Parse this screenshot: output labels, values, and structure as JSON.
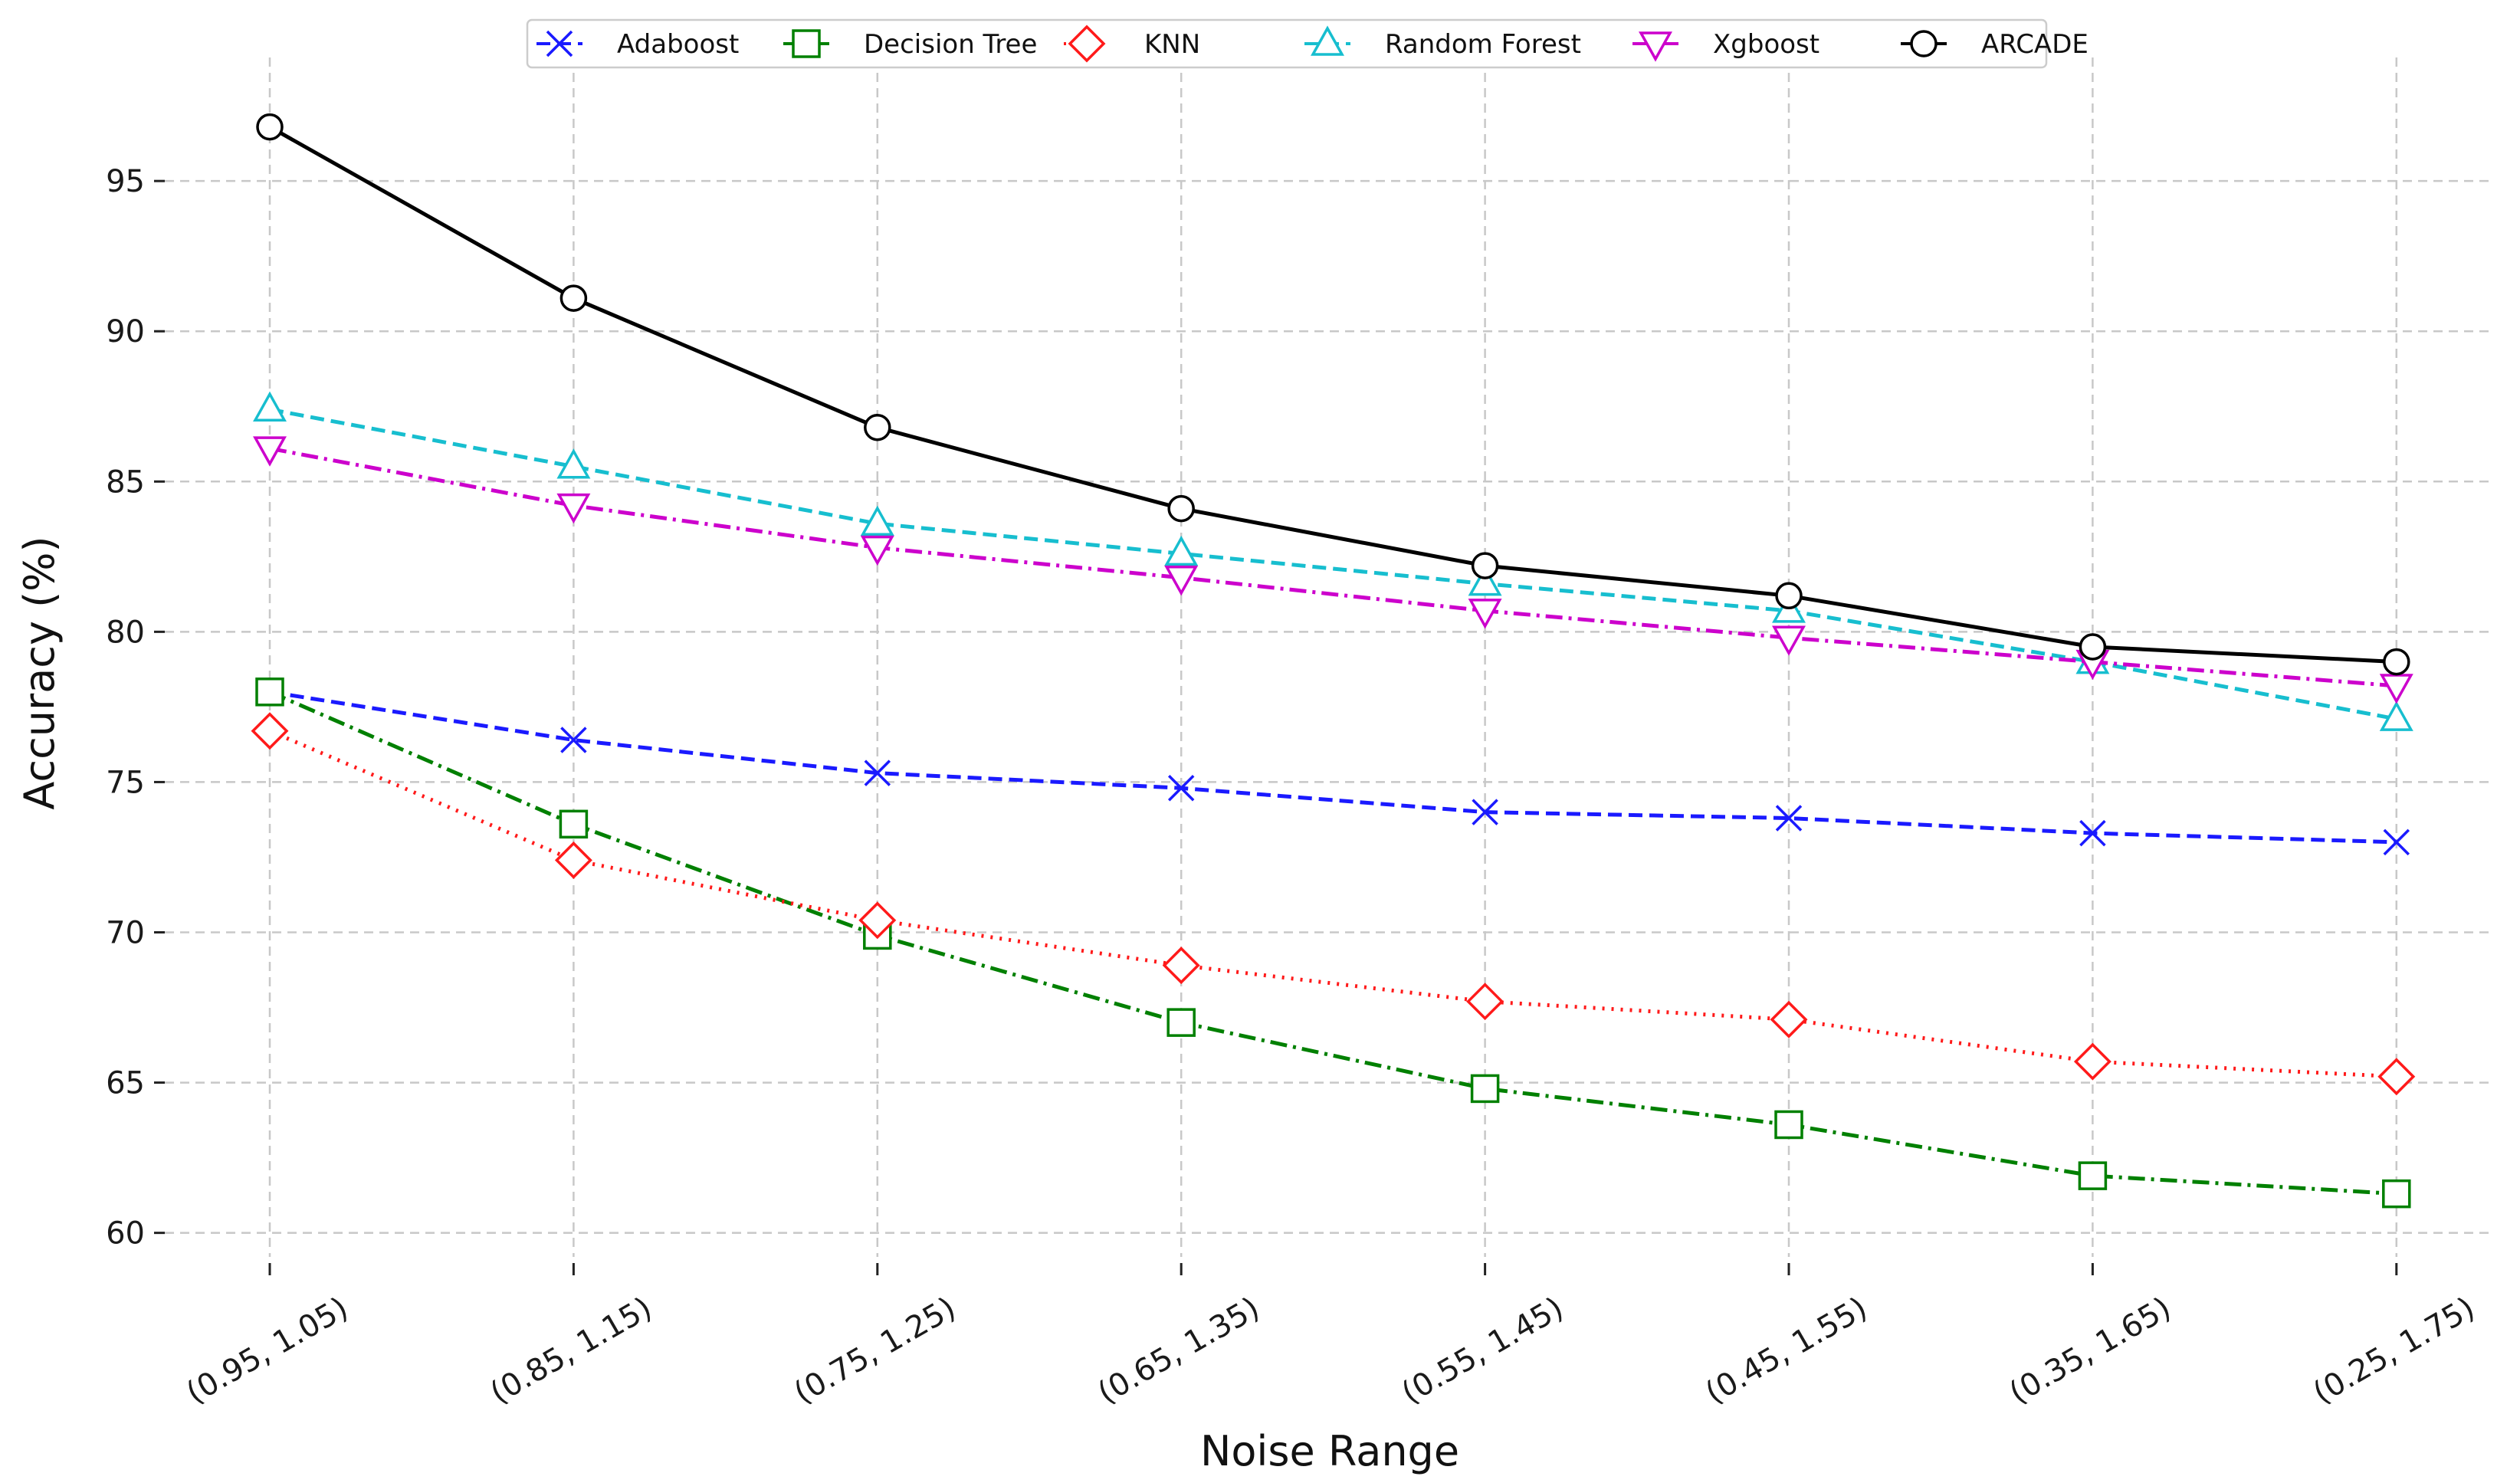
{
  "chart_data": {
    "type": "line",
    "title": "",
    "xlabel": "Noise Range",
    "ylabel": "Accuracy (%)",
    "categories": [
      "(0.95, 1.05)",
      "(0.85, 1.15)",
      "(0.75, 1.25)",
      "(0.65, 1.35)",
      "(0.55, 1.45)",
      "(0.45, 1.55)",
      "(0.35, 1.65)",
      "(0.25, 1.75)"
    ],
    "ylim": [
      59.2,
      98.6
    ],
    "yticks": [
      60,
      65,
      70,
      75,
      80,
      85,
      90,
      95
    ],
    "grid": true,
    "legend_position": "top-center",
    "series": [
      {
        "name": "Adaboost",
        "color": "#1a1aff",
        "marker": "x",
        "linestyle": "dashed",
        "values": [
          78.0,
          76.4,
          75.3,
          74.8,
          74.0,
          73.8,
          73.3,
          73.0
        ]
      },
      {
        "name": "Decision Tree",
        "color": "#008000",
        "marker": "square",
        "linestyle": "dashdot",
        "values": [
          78.0,
          73.6,
          69.9,
          67.0,
          64.8,
          63.6,
          61.9,
          61.3
        ]
      },
      {
        "name": "KNN",
        "color": "#ff1a1a",
        "marker": "diamond",
        "linestyle": "dotted",
        "values": [
          76.7,
          72.4,
          70.4,
          68.9,
          67.7,
          67.1,
          65.7,
          65.2
        ]
      },
      {
        "name": "Random Forest",
        "color": "#17becf",
        "marker": "triangle-up",
        "linestyle": "dashed",
        "values": [
          87.4,
          85.5,
          83.6,
          82.6,
          81.6,
          80.7,
          79.0,
          77.1
        ]
      },
      {
        "name": "Xgboost",
        "color": "#cc00cc",
        "marker": "triangle-down",
        "linestyle": "dashdot",
        "values": [
          86.1,
          84.2,
          82.8,
          81.8,
          80.7,
          79.8,
          79.0,
          78.2
        ]
      },
      {
        "name": "ARCADE",
        "color": "#000000",
        "marker": "circle",
        "linestyle": "solid",
        "values": [
          96.8,
          91.1,
          86.8,
          84.1,
          82.2,
          81.2,
          79.5,
          79.0
        ]
      }
    ]
  }
}
